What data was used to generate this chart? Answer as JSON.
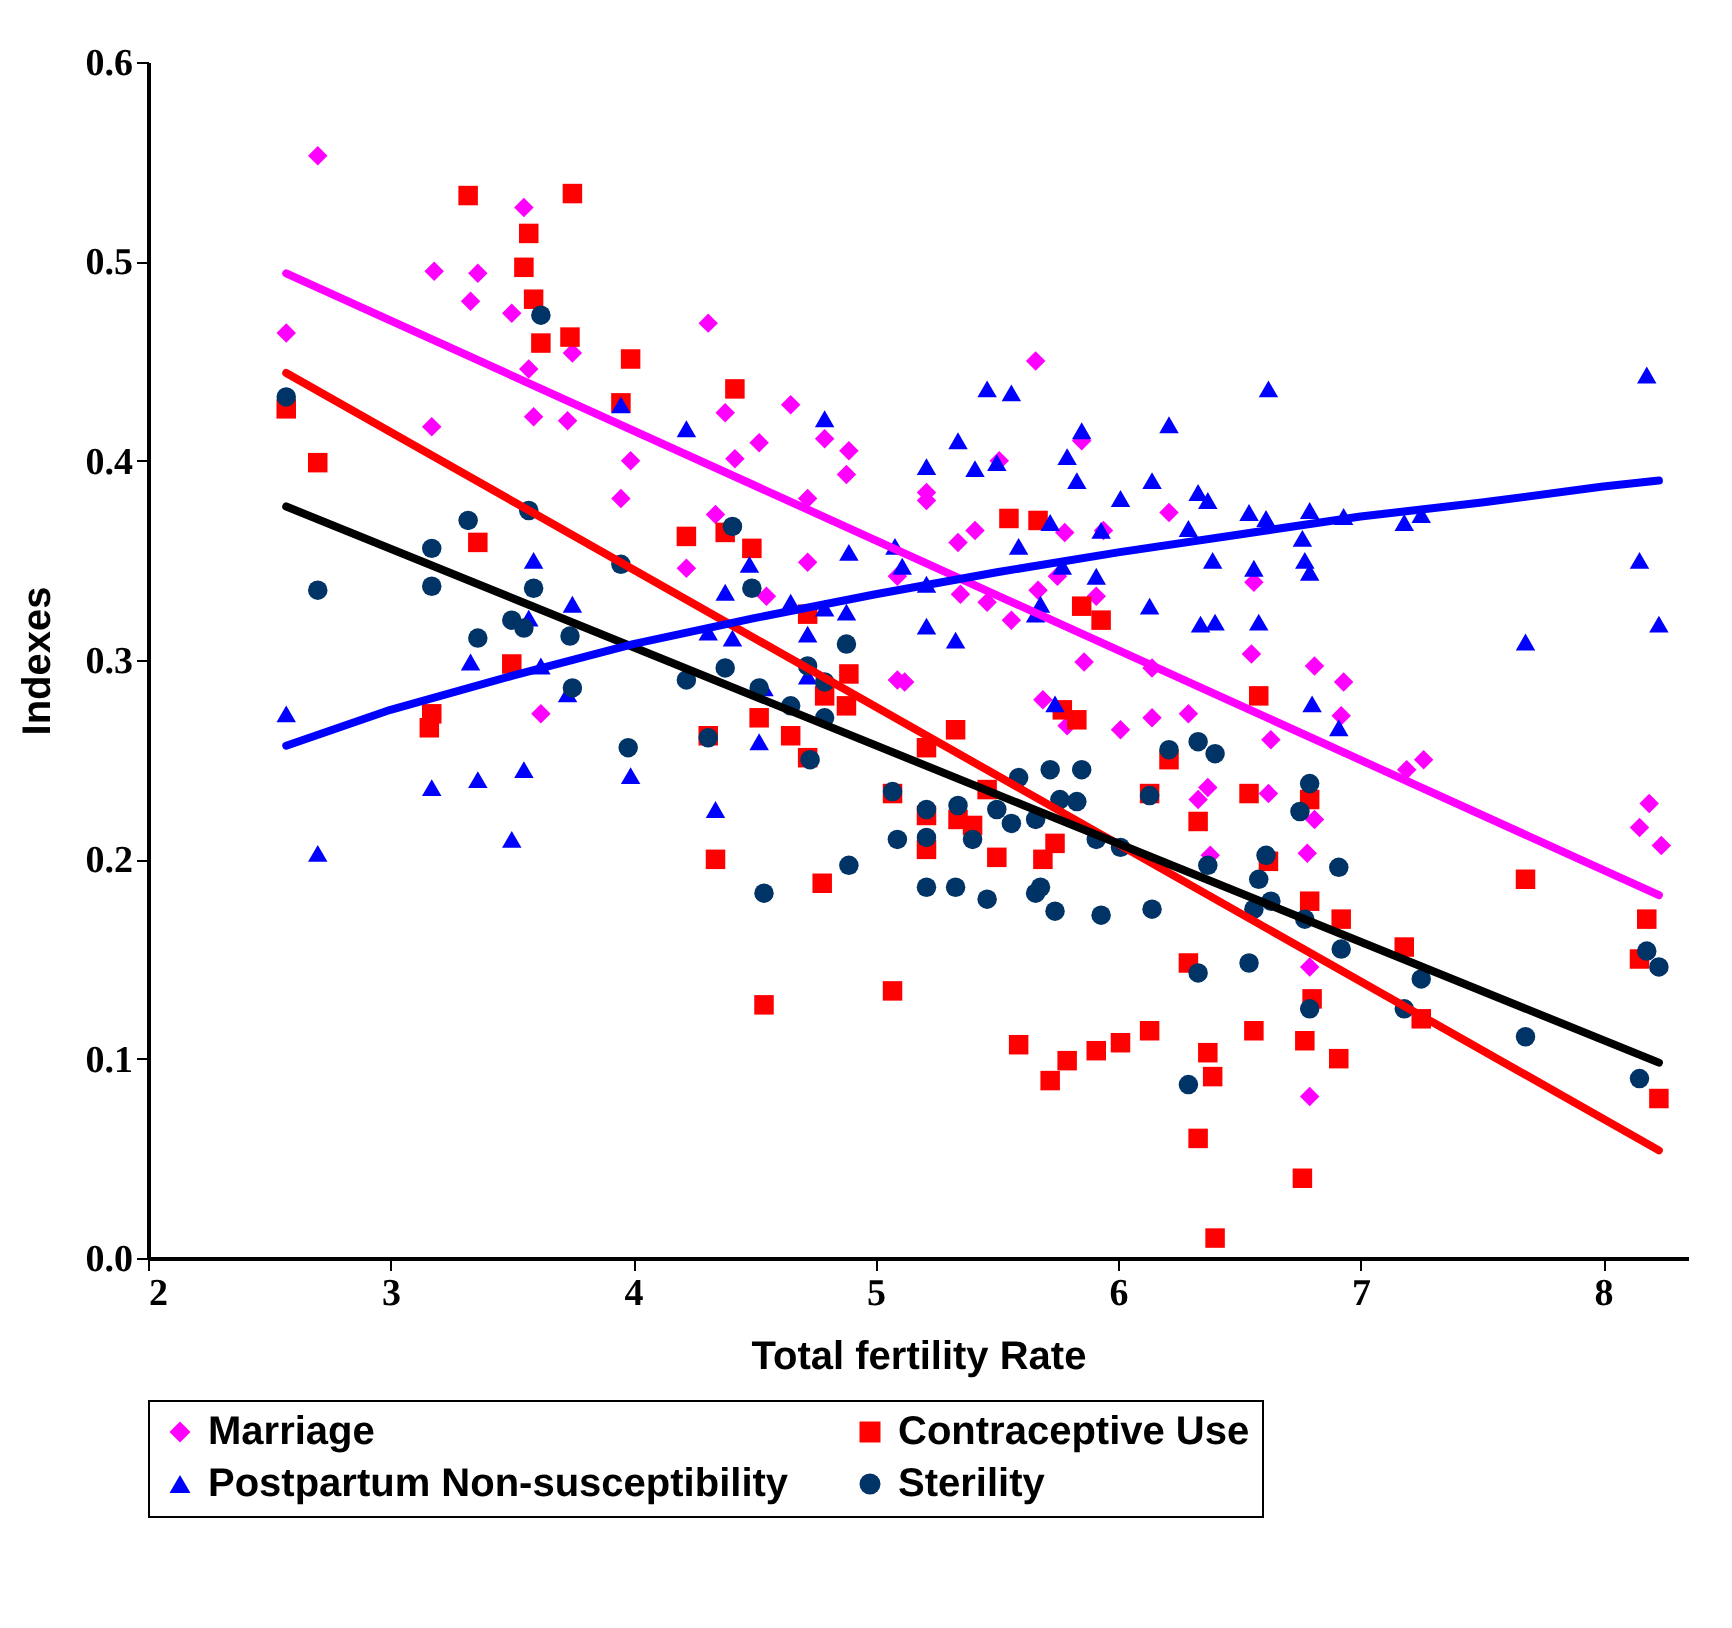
{
  "chart_data": {
    "type": "scatter",
    "xlabel": "Total fertility Rate",
    "ylabel": "Indexes",
    "xlim": [
      2,
      8.35
    ],
    "xticks": [
      2,
      3,
      4,
      5,
      6,
      7,
      8
    ],
    "ylim": [
      0,
      0.6
    ],
    "yticks": [
      {
        "value": 0,
        "label": "0.0"
      },
      0.1,
      0.2,
      0.3,
      0.4,
      0.5,
      0.6
    ],
    "grid": false,
    "legend": "bottom",
    "series": [
      {
        "name": "Marriage",
        "color": "#ff00ff",
        "marker": "diamond",
        "x": [
          2.7,
          2.57,
          3.18,
          3.36,
          3.33,
          3.55,
          3.5,
          3.57,
          3.59,
          3.73,
          3.75,
          3.17,
          4.31,
          4.38,
          4.42,
          4.52,
          4.65,
          4.79,
          4.89,
          4.88,
          4.72,
          3.99,
          3.95,
          4.34,
          4.22,
          4.72,
          4.55,
          5.09,
          3.62,
          5.66,
          5.21,
          5.21,
          5.51,
          5.85,
          5.34,
          5.41,
          5.78,
          5.94,
          6.21,
          5.09,
          5.35,
          5.46,
          5.56,
          5.67,
          5.75,
          5.91,
          5.86,
          6.14,
          6.55,
          6.56,
          5.12,
          6.81,
          6.93,
          5.69,
          5.79,
          6.01,
          6.14,
          6.29,
          6.63,
          6.92,
          7.19,
          7.26,
          8.19,
          8.15,
          6.37,
          6.33,
          6.62,
          6.81,
          6.79,
          6.78,
          6.79,
          8.24,
          6.38
        ],
        "values": [
          0.553,
          0.464,
          0.495,
          0.494,
          0.48,
          0.527,
          0.474,
          0.446,
          0.422,
          0.42,
          0.454,
          0.417,
          0.469,
          0.424,
          0.401,
          0.409,
          0.428,
          0.411,
          0.405,
          0.393,
          0.381,
          0.4,
          0.381,
          0.373,
          0.346,
          0.349,
          0.332,
          0.29,
          0.273,
          0.45,
          0.384,
          0.38,
          0.4,
          0.41,
          0.359,
          0.365,
          0.364,
          0.365,
          0.374,
          0.342,
          0.333,
          0.329,
          0.32,
          0.335,
          0.342,
          0.332,
          0.299,
          0.296,
          0.303,
          0.339,
          0.289,
          0.297,
          0.289,
          0.28,
          0.267,
          0.265,
          0.271,
          0.273,
          0.26,
          0.272,
          0.245,
          0.25,
          0.228,
          0.216,
          0.236,
          0.23,
          0.233,
          0.22,
          0.081,
          0.203,
          0.146,
          0.207,
          0.202
        ]
      },
      {
        "name": "Contraceptive Use",
        "color": "#ff0000",
        "marker": "square",
        "x": [
          3.32,
          3.75,
          3.57,
          3.55,
          3.59,
          3.62,
          3.74,
          3.99,
          2.57,
          2.7,
          3.95,
          4.42,
          3.36,
          4.22,
          4.38,
          4.49,
          4.72,
          4.89,
          4.88,
          4.79,
          4.52,
          4.65,
          3.5,
          3.17,
          3.16,
          4.31,
          4.72,
          4.34,
          4.78,
          4.54,
          5.07,
          5.07,
          5.21,
          5.21,
          5.33,
          5.21,
          5.34,
          5.4,
          5.46,
          5.5,
          5.69,
          5.74,
          5.77,
          5.83,
          5.59,
          5.72,
          5.79,
          5.91,
          6.01,
          6.13,
          6.13,
          6.21,
          6.29,
          6.33,
          6.37,
          6.39,
          6.33,
          6.4,
          6.54,
          6.56,
          6.58,
          6.62,
          6.77,
          6.76,
          6.79,
          6.79,
          6.8,
          6.91,
          6.92,
          7.18,
          7.25,
          7.68,
          8.18,
          8.15,
          8.23,
          5.55,
          5.67,
          5.85,
          5.93
        ],
        "values": [
          0.533,
          0.534,
          0.514,
          0.497,
          0.481,
          0.459,
          0.462,
          0.451,
          0.426,
          0.399,
          0.429,
          0.436,
          0.359,
          0.362,
          0.364,
          0.356,
          0.323,
          0.293,
          0.277,
          0.282,
          0.271,
          0.262,
          0.298,
          0.273,
          0.266,
          0.262,
          0.251,
          0.2,
          0.188,
          0.127,
          0.134,
          0.233,
          0.222,
          0.205,
          0.265,
          0.256,
          0.22,
          0.217,
          0.235,
          0.201,
          0.2,
          0.208,
          0.275,
          0.27,
          0.107,
          0.089,
          0.099,
          0.104,
          0.108,
          0.114,
          0.233,
          0.25,
          0.148,
          0.219,
          0.103,
          0.091,
          0.06,
          0.01,
          0.233,
          0.114,
          0.282,
          0.199,
          0.109,
          0.04,
          0.179,
          0.23,
          0.13,
          0.1,
          0.17,
          0.156,
          0.12,
          0.19,
          0.17,
          0.15,
          0.08,
          0.371,
          0.37,
          0.327,
          0.32
        ]
      },
      {
        "name": "Postpartum Non-susceptibility",
        "color": "#0000ff",
        "marker": "triangle",
        "x": [
          2.57,
          3.95,
          4.22,
          4.79,
          5.08,
          4.89,
          3.59,
          3.75,
          4.48,
          4.38,
          4.65,
          4.79,
          4.88,
          4.72,
          4.41,
          4.31,
          3.33,
          3.62,
          3.57,
          4.72,
          4.54,
          2.7,
          3.17,
          3.36,
          3.55,
          3.5,
          3.99,
          4.34,
          4.52,
          3.73,
          5.46,
          5.56,
          6.62,
          8.18,
          5.85,
          6.21,
          5.34,
          5.79,
          5.21,
          5.41,
          5.5,
          5.83,
          6.14,
          6.01,
          6.33,
          6.37,
          5.72,
          5.59,
          5.93,
          6.29,
          6.54,
          6.61,
          6.79,
          6.93,
          7.18,
          7.25,
          6.76,
          5.11,
          5.21,
          5.77,
          5.91,
          6.39,
          6.56,
          6.77,
          6.79,
          8.15,
          5.68,
          5.66,
          6.13,
          5.21,
          5.33,
          6.34,
          6.4,
          6.58,
          7.68,
          8.23,
          5.74,
          6.8,
          6.91
        ],
        "values": [
          0.273,
          0.428,
          0.416,
          0.421,
          0.357,
          0.354,
          0.35,
          0.328,
          0.348,
          0.334,
          0.329,
          0.326,
          0.324,
          0.313,
          0.311,
          0.314,
          0.299,
          0.297,
          0.321,
          0.292,
          0.286,
          0.203,
          0.236,
          0.24,
          0.245,
          0.21,
          0.242,
          0.225,
          0.259,
          0.283,
          0.436,
          0.434,
          0.436,
          0.443,
          0.415,
          0.418,
          0.41,
          0.402,
          0.397,
          0.396,
          0.399,
          0.39,
          0.39,
          0.381,
          0.384,
          0.38,
          0.369,
          0.357,
          0.365,
          0.366,
          0.374,
          0.371,
          0.375,
          0.372,
          0.369,
          0.373,
          0.361,
          0.347,
          0.338,
          0.347,
          0.342,
          0.35,
          0.346,
          0.35,
          0.344,
          0.35,
          0.328,
          0.323,
          0.327,
          0.317,
          0.31,
          0.318,
          0.319,
          0.319,
          0.309,
          0.318,
          0.278,
          0.278,
          0.266
        ]
      },
      {
        "name": "Sterility",
        "color": "#003366",
        "marker": "circle",
        "x": [
          2.57,
          2.7,
          3.62,
          3.32,
          3.17,
          3.17,
          3.57,
          3.59,
          3.95,
          4.41,
          4.49,
          3.5,
          3.55,
          3.36,
          3.74,
          3.75,
          4.22,
          4.38,
          4.52,
          4.65,
          4.79,
          4.88,
          4.72,
          4.79,
          3.98,
          4.31,
          4.73,
          4.54,
          4.89,
          5.07,
          5.09,
          5.21,
          5.21,
          5.21,
          5.33,
          5.34,
          5.4,
          5.46,
          5.5,
          5.56,
          5.59,
          5.66,
          5.66,
          5.68,
          5.72,
          5.74,
          5.76,
          5.83,
          5.85,
          5.91,
          5.93,
          6.01,
          6.13,
          6.14,
          6.21,
          6.29,
          6.33,
          6.33,
          6.37,
          6.4,
          6.54,
          6.58,
          6.61,
          6.63,
          6.56,
          6.77,
          6.75,
          6.79,
          6.79,
          6.91,
          6.92,
          7.18,
          7.25,
          7.68,
          8.15,
          8.18,
          8.23
        ],
        "values": [
          0.432,
          0.335,
          0.473,
          0.37,
          0.356,
          0.337,
          0.375,
          0.336,
          0.348,
          0.367,
          0.336,
          0.32,
          0.316,
          0.311,
          0.312,
          0.286,
          0.29,
          0.296,
          0.286,
          0.277,
          0.289,
          0.308,
          0.297,
          0.271,
          0.256,
          0.261,
          0.25,
          0.183,
          0.197,
          0.234,
          0.21,
          0.225,
          0.211,
          0.186,
          0.186,
          0.227,
          0.21,
          0.18,
          0.225,
          0.218,
          0.241,
          0.22,
          0.183,
          0.186,
          0.245,
          0.174,
          0.23,
          0.229,
          0.245,
          0.21,
          0.172,
          0.206,
          0.232,
          0.175,
          0.255,
          0.087,
          0.259,
          0.143,
          0.197,
          0.253,
          0.148,
          0.19,
          0.202,
          0.179,
          0.175,
          0.17,
          0.224,
          0.238,
          0.125,
          0.196,
          0.155,
          0.125,
          0.14,
          0.111,
          0.09,
          0.154,
          0.146
        ]
      },
      {
        "type": "line",
        "color": "#ff00ff",
        "x": [
          2.57,
          8.23
        ],
        "values": [
          0.494,
          0.182
        ]
      },
      {
        "type": "line",
        "color": "#ff0000",
        "x": [
          2.57,
          8.23
        ],
        "values": [
          0.444,
          0.054
        ]
      },
      {
        "type": "line",
        "color": "#000000",
        "x": [
          2.57,
          8.23
        ],
        "values": [
          0.377,
          0.098
        ]
      },
      {
        "type": "line",
        "color": "#0000ff",
        "x": [
          2.57,
          3,
          3.5,
          4,
          4.5,
          5,
          5.5,
          6,
          6.5,
          7,
          7.5,
          8,
          8.23
        ],
        "values": [
          0.257,
          0.275,
          0.292,
          0.308,
          0.321,
          0.333,
          0.344,
          0.354,
          0.363,
          0.372,
          0.379,
          0.387,
          0.39
        ]
      }
    ]
  }
}
